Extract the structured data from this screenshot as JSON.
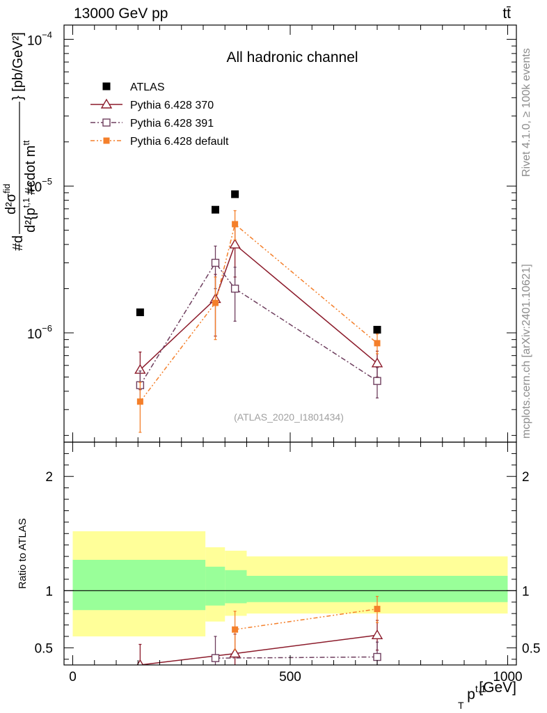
{
  "header": {
    "energy_label": "13000 GeV pp",
    "process_label": "tt̄"
  },
  "side_text": {
    "rivet": "Rivet 4.1.0, ≥ 100k events",
    "mcplots": "mcplots.cern.ch [arXiv:2401.10621]"
  },
  "chart_data": [
    {
      "type": "line",
      "title": "All hadronic channel",
      "watermark": "(ATLAS_2020_I1801434)",
      "ylabel_parts": {
        "main": "#d",
        "num": "d²σ",
        "num_sup": "fid",
        "den": "d²{p",
        "den_sup": "t,1",
        "den_rest": "#cdot m",
        "den_rest_sup": "tt",
        "braces": "} [pb/GeV²]"
      },
      "yscale": "log",
      "ylim": [
        1.8e-07,
        0.000125
      ],
      "xlim": [
        -20,
        1020
      ],
      "ytick_labels": [
        {
          "value": 0.0001,
          "base": "10",
          "exp": "−4"
        },
        {
          "value": 1e-05,
          "base": "10",
          "exp": "−5"
        },
        {
          "value": 1e-06,
          "base": "10",
          "exp": "−6"
        }
      ],
      "legend_position": "top-left",
      "series": [
        {
          "name": "ATLAS",
          "style": "data",
          "color": "#000000",
          "marker": "filled-square",
          "points": [
            {
              "x": 155,
              "y": 1.38e-06
            },
            {
              "x": 328,
              "y": 6.9e-06
            },
            {
              "x": 373,
              "y": 8.8e-06
            },
            {
              "x": 700,
              "y": 1.05e-06
            }
          ]
        },
        {
          "name": "Pythia 6.428 370",
          "style": "solid",
          "color": "#8b1a2a",
          "marker": "open-triangle",
          "points": [
            {
              "x": 155,
              "y": 5.6e-07,
              "lo": 4.1e-07,
              "hi": 7.4e-07
            },
            {
              "x": 328,
              "y": 1.7e-06,
              "lo": 9.5e-07,
              "hi": 2.5e-06
            },
            {
              "x": 373,
              "y": 4e-06,
              "lo": 2.4e-06,
              "hi": 5.5e-06
            },
            {
              "x": 700,
              "y": 6.2e-07,
              "lo": 5e-07,
              "hi": 7.5e-07
            }
          ]
        },
        {
          "name": "Pythia 6.428 391",
          "style": "dashdot",
          "color": "#6e3e5e",
          "marker": "open-square",
          "points": [
            {
              "x": 155,
              "y": 4.4e-07,
              "lo": 3.4e-07,
              "hi": 5.5e-07
            },
            {
              "x": 328,
              "y": 3e-06,
              "lo": 2e-06,
              "hi": 3.9e-06
            },
            {
              "x": 373,
              "y": 2e-06,
              "lo": 1.2e-06,
              "hi": 2.8e-06
            },
            {
              "x": 700,
              "y": 4.7e-07,
              "lo": 3.6e-07,
              "hi": 5.8e-07
            }
          ]
        },
        {
          "name": "Pythia 6.428 default",
          "style": "dashdotdot",
          "color": "#f47f2a",
          "marker": "filled-square",
          "points": [
            {
              "x": 155,
              "y": 3.4e-07,
              "lo": 2.1e-07,
              "hi": 4.6e-07
            },
            {
              "x": 328,
              "y": 1.6e-06,
              "lo": 9e-07,
              "hi": 2.4e-06
            },
            {
              "x": 373,
              "y": 5.5e-06,
              "lo": 4.3e-06,
              "hi": 6.8e-06
            },
            {
              "x": 700,
              "y": 8.5e-07,
              "lo": 7.2e-07,
              "hi": 9.8e-07
            }
          ]
        }
      ]
    },
    {
      "type": "line",
      "ylabel": "Ratio to ATLAS",
      "xlabel_base": "p",
      "xlabel_sub": "T",
      "xlabel_sup": "t,1",
      "xlabel_unit": " [GeV]",
      "xlim": [
        -20,
        1020
      ],
      "ylim": [
        0.35,
        2.3
      ],
      "x_ticks": [
        0,
        500,
        1000
      ],
      "y_ticks": [
        0.5,
        1,
        2
      ],
      "reference_line": 1,
      "bands": [
        {
          "x0": 0,
          "x1": 305,
          "inner": [
            0.83,
            1.27
          ],
          "outer": [
            0.6,
            1.52
          ]
        },
        {
          "x0": 305,
          "x1": 350,
          "inner": [
            0.87,
            1.21
          ],
          "outer": [
            0.73,
            1.38
          ]
        },
        {
          "x0": 350,
          "x1": 400,
          "inner": [
            0.89,
            1.18
          ],
          "outer": [
            0.78,
            1.35
          ]
        },
        {
          "x0": 400,
          "x1": 1000,
          "inner": [
            0.9,
            1.13
          ],
          "outer": [
            0.8,
            1.3
          ]
        }
      ],
      "band_colors": {
        "inner": "#99ff99",
        "outer": "#ffff99"
      },
      "series": [
        {
          "name": "Pythia 6.428 370",
          "color": "#8b1a2a",
          "style": "solid",
          "marker": "open-triangle",
          "points": [
            {
              "x": 155,
              "y": 0.35,
              "lo": 0.3,
              "hi": 0.53
            },
            {
              "x": 373,
              "y": 0.45,
              "lo": 0.3,
              "hi": 0.62
            },
            {
              "x": 700,
              "y": 0.61,
              "lo": 0.48,
              "hi": 0.74
            }
          ]
        },
        {
          "name": "Pythia 6.428 391",
          "color": "#6e3e5e",
          "style": "dashdot",
          "marker": "open-square",
          "points": [
            {
              "x": 328,
              "y": 0.41,
              "lo": 0.3,
              "hi": 0.6
            },
            {
              "x": 700,
              "y": 0.42,
              "lo": 0.3,
              "hi": 0.55
            }
          ]
        },
        {
          "name": "Pythia 6.428 default",
          "color": "#f47f2a",
          "style": "dashdotdot",
          "marker": "filled-square",
          "points": [
            {
              "x": 373,
              "y": 0.66,
              "lo": 0.48,
              "hi": 0.82
            },
            {
              "x": 700,
              "y": 0.84,
              "lo": 0.72,
              "hi": 0.95
            }
          ]
        }
      ]
    }
  ]
}
